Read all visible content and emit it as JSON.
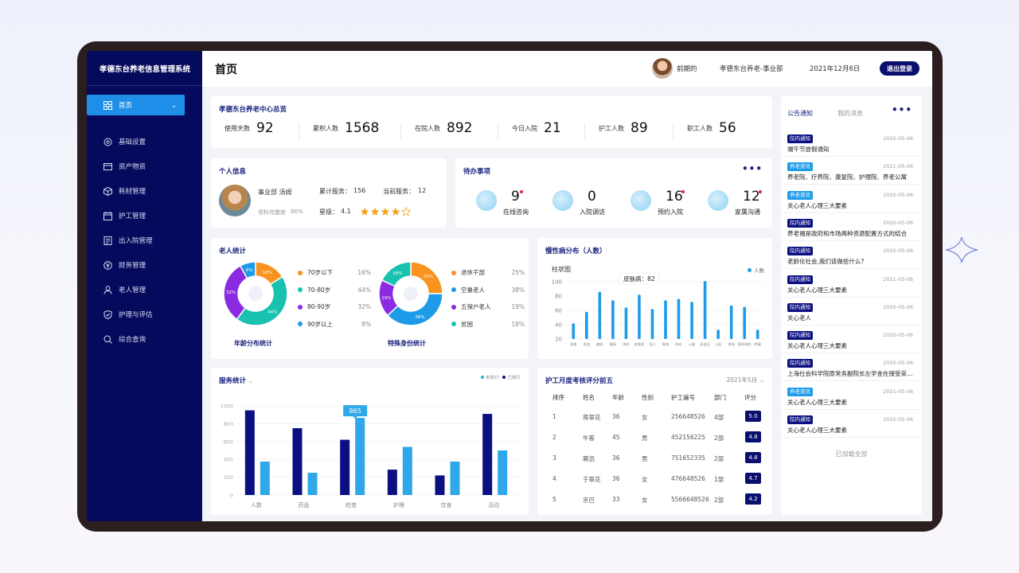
{
  "app": {
    "title": "孝德东台养老信息管理系统"
  },
  "sidebar": {
    "items": [
      {
        "label": "首页",
        "icon": "grid-icon",
        "active": true
      },
      {
        "label": "基础设置",
        "icon": "gear-icon"
      },
      {
        "label": "资产物资",
        "icon": "card-icon"
      },
      {
        "label": "耗材管理",
        "icon": "box-icon"
      },
      {
        "label": "护工管理",
        "icon": "calendar-icon"
      },
      {
        "label": "出入院管理",
        "icon": "document-icon"
      },
      {
        "label": "财务管理",
        "icon": "yen-icon"
      },
      {
        "label": "老人管理",
        "icon": "user-icon"
      },
      {
        "label": "护理与评估",
        "icon": "shield-icon"
      },
      {
        "label": "综合查询",
        "icon": "search-icon"
      }
    ]
  },
  "header": {
    "title": "首页",
    "user": "前期的",
    "org": "孝德东台养老-事业部",
    "date": "2021年12月6日",
    "logout": "退出登录"
  },
  "overview": {
    "title": "孝德东台养老中心总览",
    "stats": [
      {
        "label": "使用天数",
        "value": "92"
      },
      {
        "label": "累积人数",
        "value": "1568"
      },
      {
        "label": "在院人数",
        "value": "892"
      },
      {
        "label": "今日入院",
        "value": "21"
      },
      {
        "label": "护工人数",
        "value": "89"
      },
      {
        "label": "职工人数",
        "value": "56"
      }
    ]
  },
  "personal": {
    "title": "个人信息",
    "name": "事业部  汤姆",
    "completeness_label": "资料完整度",
    "completeness": "86%",
    "services_label": "累计服务：",
    "services": "156",
    "current_label": "当前服务：",
    "current": "12",
    "star_label": "星级：",
    "star": "4.1",
    "stars_filled": 4,
    "stars_total": 5
  },
  "todo": {
    "title": "待办事项",
    "more": "•••",
    "items": [
      {
        "count": "9",
        "label": "在线咨询",
        "has_dot": true
      },
      {
        "count": "0",
        "label": "入院调访",
        "has_dot": false
      },
      {
        "count": "16",
        "label": "预约入院",
        "has_dot": true
      },
      {
        "count": "12",
        "label": "家属沟通",
        "has_dot": true
      }
    ]
  },
  "elderly": {
    "title": "老人统计",
    "age": {
      "caption": "年龄分布统计",
      "segments": [
        {
          "label": "70岁以下",
          "pct": "16%",
          "value": 16,
          "color": "#f7931e"
        },
        {
          "label": "70-80岁",
          "pct": "44%",
          "value": 44,
          "color": "#19c2b0"
        },
        {
          "label": "80-90岁",
          "pct": "32%",
          "value": 32,
          "color": "#8a2be2"
        },
        {
          "label": "90岁以上",
          "pct": "8%",
          "value": 8,
          "color": "#1e9be8"
        }
      ]
    },
    "identity": {
      "caption": "特殊身份统计",
      "segments": [
        {
          "label": "退休干部",
          "pct": "25%",
          "value": 25,
          "color": "#f7931e"
        },
        {
          "label": "空巢老人",
          "pct": "38%",
          "value": 38,
          "color": "#1e9be8"
        },
        {
          "label": "五保户老人",
          "pct": "19%",
          "value": 19,
          "color": "#8a2be2"
        },
        {
          "label": "贫困",
          "pct": "18%",
          "value": 18,
          "color": "#19c2b0"
        }
      ]
    }
  },
  "chronic": {
    "title": "慢性病分布（人数）",
    "subtitle": "柱状图",
    "legend": "人数",
    "tooltip": "皮肤病：82",
    "color": "#1e9be8"
  },
  "service": {
    "title": "服务统计",
    "legend": [
      "未执行",
      "已执行"
    ],
    "tooltip": "865",
    "colors": {
      "dark": "#0a0f82",
      "light": "#2ea8e8"
    }
  },
  "nurse": {
    "title": "护工月度考核评分前五",
    "month": "2021年5月",
    "headers": [
      "排序",
      "姓名",
      "年龄",
      "性别",
      "护工编号",
      "部门",
      "评分"
    ],
    "rows": [
      [
        "1",
        "蒋翠花",
        "36",
        "女",
        "256648526",
        "4部",
        "5.0"
      ],
      [
        "2",
        "牛客",
        "45",
        "男",
        "452156225",
        "2部",
        "4.8"
      ],
      [
        "3",
        "赛迅",
        "36",
        "男",
        "751652335",
        "2部",
        "4.8"
      ],
      [
        "4",
        "于翠花",
        "36",
        "女",
        "476648526",
        "1部",
        "4.7"
      ],
      [
        "5",
        "京巴",
        "33",
        "女",
        "5566648526",
        "2部",
        "4.2"
      ]
    ]
  },
  "notices": {
    "tabs": [
      "公告通知",
      "我的消息"
    ],
    "more": "•••",
    "items": [
      {
        "tag": "院内通知",
        "color": "#0a0f82",
        "date": "2020-05-06",
        "text": "端午节放假通知"
      },
      {
        "tag": "养老资讯",
        "color": "#1e9be8",
        "date": "2021-05-06",
        "text": "养老院、疗养院、康复院、护理院、养老公寓"
      },
      {
        "tag": "养老资讯",
        "color": "#1e9be8",
        "date": "2020-05-06",
        "text": "关心老人心理三大要素"
      },
      {
        "tag": "院内通知",
        "color": "#0a0f82",
        "date": "2020-05-06",
        "text": "养老福是政府和市场两种资源配置方式的结合"
      },
      {
        "tag": "院内通知",
        "color": "#0a0f82",
        "date": "2020-05-06",
        "text": "老龄化社会,我们该做些什么?"
      },
      {
        "tag": "院内通知",
        "color": "#0a0f82",
        "date": "2021-05-06",
        "text": "关心老人心理三大要素"
      },
      {
        "tag": "院内通知",
        "color": "#0a0f82",
        "date": "2020-05-06",
        "text": "关心老人"
      },
      {
        "tag": "院内通知",
        "color": "#0a0f82",
        "date": "2020-05-06",
        "text": "关心老人心理三大要素"
      },
      {
        "tag": "院内通知",
        "color": "#0a0f82",
        "date": "2020-05-06",
        "text": "上海社会科学院原常务副院长左学金在接受采访时表示"
      },
      {
        "tag": "养老资讯",
        "color": "#1e9be8",
        "date": "2021-05-06",
        "text": "关心老人心理三大要素"
      },
      {
        "tag": "院内通知",
        "color": "#0a0f82",
        "date": "2022-05-06",
        "text": "关心老人心理三大要素"
      }
    ],
    "footer": "已加载全部"
  },
  "chart_data": [
    {
      "type": "bar",
      "title": "慢性病分布（人数）",
      "categories": [
        "颈椎",
        "贫血",
        "糖尿",
        "癫痫",
        "神经",
        "皮肤病",
        "冠心",
        "胃病",
        "肺炎",
        "心脑",
        "高血压",
        "心肌",
        "骨病",
        "骨质疏松",
        "肿瘤"
      ],
      "series": [
        {
          "name": "人数",
          "values": [
            42,
            58,
            86,
            74,
            64,
            82,
            62,
            74,
            76,
            72,
            101,
            33,
            67,
            65,
            33
          ]
        }
      ],
      "ylim": [
        20,
        100
      ],
      "yticks": [
        20,
        40,
        60,
        80,
        100
      ]
    },
    {
      "type": "bar",
      "title": "服务统计",
      "categories": [
        "人数",
        "药品",
        "检查",
        "护理",
        "饮食",
        "活动"
      ],
      "series": [
        {
          "name": "未执行",
          "values": [
            950,
            750,
            620,
            285,
            220,
            910
          ]
        },
        {
          "name": "已执行",
          "values": [
            375,
            250,
            865,
            540,
            375,
            500
          ]
        }
      ],
      "ylim": [
        0,
        1000
      ],
      "yticks": [
        0,
        200,
        400,
        600,
        800,
        1000
      ]
    }
  ]
}
